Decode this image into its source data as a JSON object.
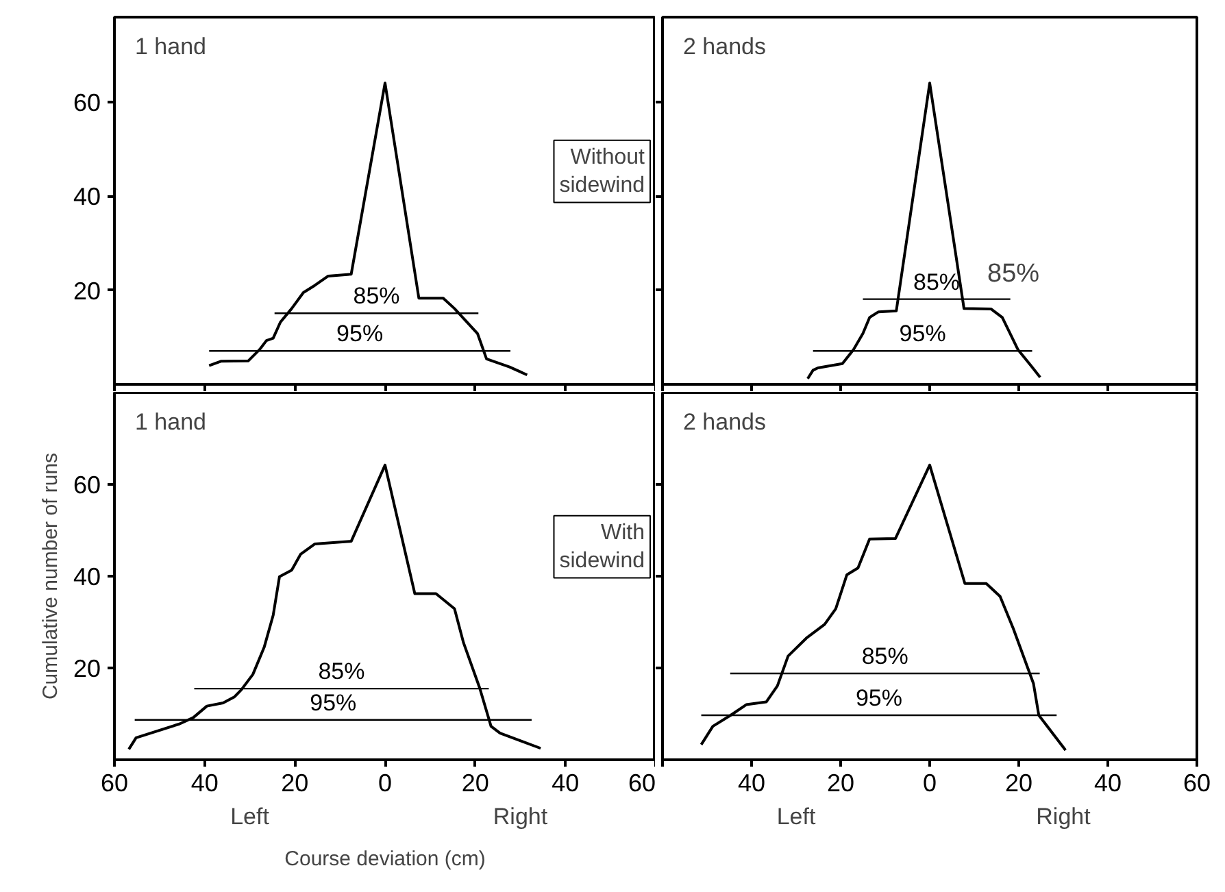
{
  "chart_data": [
    {
      "type": "line",
      "title": "1 hand",
      "xlim": [
        -60,
        60
      ],
      "ylim": [
        0,
        78
      ],
      "yticks": [
        20,
        40,
        60
      ],
      "xticks": [
        -60,
        -40,
        -20,
        0,
        20,
        40,
        60
      ],
      "tick_labels": "y",
      "grid": false,
      "series": [
        {
          "color": "#000000",
          "x": [
            -39,
            -36.4,
            -30.3,
            -27.8,
            -26.3,
            -24.8,
            -23.2,
            -20.7,
            -18.1,
            -15.6,
            -12.6,
            -7.5,
            0,
            7.5,
            12.9,
            15.4,
            20.5,
            22.5,
            27.6,
            31.5
          ],
          "values": [
            4.0,
            4.9,
            5.0,
            7.4,
            9.3,
            9.8,
            13.2,
            16.1,
            19.5,
            21.0,
            23.0,
            23.4,
            64,
            18.3,
            18.3,
            16.1,
            10.8,
            5.4,
            3.7,
            2.0
          ]
        },
        {
          "name": "85%",
          "color": "#000000",
          "x": [
            -24.5,
            20.7
          ],
          "values": [
            15.1,
            15.1
          ]
        },
        {
          "name": "95%",
          "color": "#000000",
          "x": [
            -39,
            27.8
          ],
          "values": [
            7.1,
            7.1
          ]
        }
      ],
      "annotations": [
        "Without sidewind"
      ]
    },
    {
      "type": "line",
      "title": "2 hands",
      "xlim": [
        -60,
        60
      ],
      "ylim": [
        0,
        78
      ],
      "yticks": [
        20,
        40,
        60
      ],
      "xticks": [
        -60,
        -40,
        -20,
        0,
        20,
        40,
        60
      ],
      "tick_labels": false,
      "grid": false,
      "series": [
        {
          "color": "#000000",
          "x": [
            -27.4,
            -26.2,
            -25.1,
            -19.6,
            -17.1,
            -15.0,
            -13.5,
            -11.5,
            -7.5,
            0,
            7.7,
            13.8,
            16.3,
            19.8,
            22.8,
            24.8
          ],
          "values": [
            1.2,
            3.0,
            3.5,
            4.4,
            7.4,
            10.8,
            14.2,
            15.4,
            15.6,
            64,
            16.1,
            16.0,
            14.2,
            7.4,
            3.9,
            1.5
          ]
        },
        {
          "name": "85%",
          "color": "#000000",
          "x": [
            -15.0,
            18.1
          ],
          "values": [
            18.1,
            18.1
          ]
        },
        {
          "name": "95%",
          "color": "#000000",
          "x": [
            -26.2,
            23.0
          ],
          "values": [
            7.1,
            7.1
          ]
        }
      ],
      "annotations": [
        "85%"
      ]
    },
    {
      "type": "line",
      "title": "1 hand",
      "xlabel": "Course deviation (cm)",
      "ylabel": "Cumulative number of runs",
      "xlim": [
        -60,
        60
      ],
      "ylim": [
        0,
        80
      ],
      "yticks": [
        20,
        40,
        60
      ],
      "xticks": [
        {
          "value": -60,
          "label": "60"
        },
        {
          "value": -40,
          "label": "40"
        },
        {
          "value": -20,
          "label": "20"
        },
        0,
        20,
        40,
        60
      ],
      "grid": false,
      "series": [
        {
          "color": "#000000",
          "x": [
            -56.8,
            -55.2,
            -45.6,
            -42.5,
            -39.5,
            -35.9,
            -33.4,
            -31.9,
            -29.3,
            -26.8,
            -24.8,
            -23.4,
            -20.7,
            -18.7,
            -15.6,
            -7.5,
            0,
            6.6,
            11.3,
            15.4,
            17.4,
            21.0,
            23.5,
            25.5,
            34.5
          ],
          "values": [
            2.3,
            4.8,
            7.8,
            9.2,
            11.7,
            12.4,
            13.7,
            15.2,
            18.6,
            24.5,
            31.5,
            39.9,
            41.3,
            44.8,
            47.0,
            47.6,
            64.2,
            36.2,
            36.2,
            32.9,
            25.5,
            15.6,
            7.3,
            5.8,
            2.5
          ]
        },
        {
          "name": "85%",
          "color": "#000000",
          "x": [
            -42.3,
            23.0
          ],
          "values": [
            15.5,
            15.5
          ]
        },
        {
          "name": "95%",
          "color": "#000000",
          "x": [
            -55.5,
            32.5
          ],
          "values": [
            8.7,
            8.7
          ]
        }
      ],
      "annotations": [
        "With sidewind",
        "Left",
        "Right"
      ]
    },
    {
      "type": "line",
      "title": "2 hands",
      "xlim": [
        -60,
        60
      ],
      "ylim": [
        0,
        80
      ],
      "yticks": [
        20,
        40,
        60
      ],
      "xticks": [
        {
          "value": -60,
          "label": null
        },
        {
          "value": -40,
          "label": "40"
        },
        {
          "value": -20,
          "label": "20"
        },
        0,
        20,
        40,
        60
      ],
      "tick_labels": "x",
      "grid": false,
      "series": [
        {
          "color": "#000000",
          "x": [
            -51.3,
            -48.7,
            -44.7,
            -41.2,
            -36.7,
            -34.2,
            -31.8,
            -27.7,
            -23.6,
            -21.1,
            -18.6,
            -16.1,
            -13.5,
            -7.7,
            0,
            7.9,
            12.7,
            15.8,
            18.8,
            23.3,
            24.5,
            30.5
          ],
          "values": [
            3.3,
            7.3,
            9.7,
            12.0,
            12.6,
            16.1,
            22.6,
            26.5,
            29.5,
            32.9,
            40.3,
            41.8,
            48.1,
            48.2,
            64.2,
            38.4,
            38.4,
            35.6,
            28.5,
            16.6,
            9.7,
            2.1
          ]
        },
        {
          "name": "85%",
          "color": "#000000",
          "x": [
            -44.8,
            24.7
          ],
          "values": [
            18.8,
            18.8
          ]
        },
        {
          "name": "95%",
          "color": "#000000",
          "x": [
            -51.3,
            28.5
          ],
          "values": [
            9.7,
            9.7
          ]
        }
      ],
      "annotations": [
        "Left",
        "Right"
      ]
    }
  ]
}
